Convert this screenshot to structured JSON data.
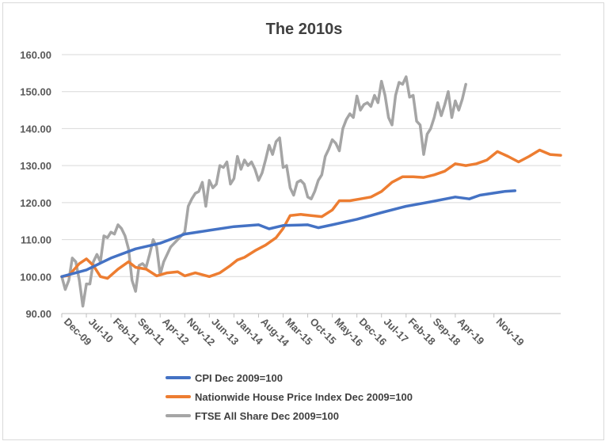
{
  "chart_data": {
    "type": "line",
    "title": "The 2010s",
    "xlabel": "",
    "ylabel": "",
    "ylim": [
      90,
      160
    ],
    "ytick_labels": [
      "90.00",
      "100.00",
      "110.00",
      "120.00",
      "130.00",
      "140.00",
      "150.00",
      "160.00"
    ],
    "ytick_values": [
      90,
      100,
      110,
      120,
      130,
      140,
      150,
      160
    ],
    "xtick_labels": [
      "Dec-09",
      "Jul-10",
      "Feb-11",
      "Sep-11",
      "Apr-12",
      "Nov-12",
      "Jun-13",
      "Jan-14",
      "Aug-14",
      "Mar-15",
      "Oct-15",
      "May-16",
      "Dec-16",
      "Jul-17",
      "Feb-18",
      "Sep-18",
      "Apr-19",
      "Nov-19"
    ],
    "grid": "horizontal",
    "legend_position": "bottom",
    "series": [
      {
        "name": "CPI  Dec 2009=100",
        "color": "#4472c4",
        "points": [
          [
            0,
            100
          ],
          [
            7,
            101.8
          ],
          [
            14,
            105
          ],
          [
            21,
            107.5
          ],
          [
            28,
            109
          ],
          [
            35,
            111.5
          ],
          [
            42,
            112.5
          ],
          [
            49,
            113.5
          ],
          [
            56,
            114
          ],
          [
            59,
            112.9
          ],
          [
            63,
            113.8
          ],
          [
            70,
            114
          ],
          [
            73,
            113.2
          ],
          [
            77,
            114
          ],
          [
            84,
            115.5
          ],
          [
            91,
            117.3
          ],
          [
            98,
            119
          ],
          [
            105,
            120.2
          ],
          [
            112,
            121.5
          ],
          [
            116,
            121
          ],
          [
            119,
            122
          ],
          [
            126,
            123
          ],
          [
            129,
            123.2
          ]
        ]
      },
      {
        "name": "Nationwide House Price Index  Dec 2009=100",
        "color": "#ed7d31",
        "points": [
          [
            0,
            100
          ],
          [
            2,
            100.3
          ],
          [
            5,
            103.5
          ],
          [
            7,
            104.8
          ],
          [
            9,
            103
          ],
          [
            11,
            100
          ],
          [
            13,
            99.5
          ],
          [
            16,
            102
          ],
          [
            19,
            104
          ],
          [
            21,
            102.5
          ],
          [
            24,
            102
          ],
          [
            27,
            100.2
          ],
          [
            30,
            101
          ],
          [
            33,
            101.3
          ],
          [
            35,
            100.2
          ],
          [
            38,
            101
          ],
          [
            42,
            100
          ],
          [
            45,
            101
          ],
          [
            48,
            103
          ],
          [
            50,
            104.5
          ],
          [
            52,
            105.2
          ],
          [
            55,
            107
          ],
          [
            58,
            108.5
          ],
          [
            61,
            110.5
          ],
          [
            63,
            113
          ],
          [
            65,
            116.5
          ],
          [
            68,
            116.8
          ],
          [
            71,
            116.5
          ],
          [
            74,
            116.2
          ],
          [
            77,
            118
          ],
          [
            79,
            120.5
          ],
          [
            82,
            120.5
          ],
          [
            85,
            121
          ],
          [
            88,
            121.5
          ],
          [
            91,
            123
          ],
          [
            94,
            125.5
          ],
          [
            97,
            127
          ],
          [
            100,
            127
          ],
          [
            103,
            126.8
          ],
          [
            106,
            127.5
          ],
          [
            109,
            128.5
          ],
          [
            112,
            130.5
          ],
          [
            115,
            130
          ],
          [
            118,
            130.5
          ],
          [
            121,
            131.5
          ],
          [
            124,
            133.8
          ],
          [
            127,
            132.5
          ],
          [
            130,
            131
          ],
          [
            133,
            132.5
          ],
          [
            136,
            134.2
          ],
          [
            139,
            133
          ],
          [
            142,
            132.8
          ]
        ]
      },
      {
        "name": "FTSE All Share Dec 2009=100",
        "color": "#a5a5a5",
        "points": [
          [
            0,
            100
          ],
          [
            1,
            96.5
          ],
          [
            2,
            99
          ],
          [
            3,
            105
          ],
          [
            4,
            104
          ],
          [
            5,
            99
          ],
          [
            6,
            92
          ],
          [
            7,
            98
          ],
          [
            8,
            98
          ],
          [
            9,
            104
          ],
          [
            10,
            106
          ],
          [
            11,
            104
          ],
          [
            12,
            111
          ],
          [
            13,
            110.5
          ],
          [
            14,
            112
          ],
          [
            15,
            111.5
          ],
          [
            16,
            114
          ],
          [
            17,
            113
          ],
          [
            18,
            111
          ],
          [
            19,
            107.5
          ],
          [
            20,
            99
          ],
          [
            21,
            96
          ],
          [
            22,
            103
          ],
          [
            23,
            103.5
          ],
          [
            24,
            102.5
          ],
          [
            25,
            106
          ],
          [
            26,
            110
          ],
          [
            27,
            108
          ],
          [
            28,
            100.5
          ],
          [
            29,
            104
          ],
          [
            30,
            106
          ],
          [
            31,
            108
          ],
          [
            32,
            109
          ],
          [
            33,
            110
          ],
          [
            34,
            111
          ],
          [
            35,
            112
          ],
          [
            36,
            119
          ],
          [
            37,
            121
          ],
          [
            38,
            122.5
          ],
          [
            39,
            123
          ],
          [
            40,
            125.5
          ],
          [
            41,
            119
          ],
          [
            42,
            126
          ],
          [
            43,
            124
          ],
          [
            44,
            125
          ],
          [
            45,
            130
          ],
          [
            46,
            129.5
          ],
          [
            47,
            131
          ],
          [
            48,
            125
          ],
          [
            49,
            126.5
          ],
          [
            50,
            132.5
          ],
          [
            51,
            129
          ],
          [
            52,
            131.5
          ],
          [
            53,
            130
          ],
          [
            54,
            131
          ],
          [
            55,
            129
          ],
          [
            56,
            126
          ],
          [
            57,
            128
          ],
          [
            58,
            131.5
          ],
          [
            59,
            135.5
          ],
          [
            60,
            133
          ],
          [
            61,
            136.5
          ],
          [
            62,
            137.5
          ],
          [
            63,
            129.5
          ],
          [
            64,
            130
          ],
          [
            65,
            124
          ],
          [
            66,
            122
          ],
          [
            67,
            125.5
          ],
          [
            68,
            126
          ],
          [
            69,
            125
          ],
          [
            70,
            121.5
          ],
          [
            71,
            121
          ],
          [
            72,
            123
          ],
          [
            73,
            126
          ],
          [
            74,
            127.5
          ],
          [
            75,
            132.5
          ],
          [
            76,
            134.5
          ],
          [
            77,
            137
          ],
          [
            78,
            136
          ],
          [
            79,
            134
          ],
          [
            80,
            140
          ],
          [
            81,
            142.5
          ],
          [
            82,
            144
          ],
          [
            83,
            143
          ],
          [
            84,
            148.8
          ],
          [
            85,
            145
          ],
          [
            86,
            146.5
          ],
          [
            87,
            147
          ],
          [
            88,
            146
          ],
          [
            89,
            149
          ],
          [
            90,
            147
          ],
          [
            91,
            152.8
          ],
          [
            92,
            149
          ],
          [
            93,
            143
          ],
          [
            94,
            141
          ],
          [
            95,
            149
          ],
          [
            96,
            152.5
          ],
          [
            97,
            152
          ],
          [
            98,
            154
          ],
          [
            99,
            148.5
          ],
          [
            100,
            149
          ],
          [
            101,
            142
          ],
          [
            102,
            141
          ],
          [
            103,
            133
          ],
          [
            104,
            138.5
          ],
          [
            105,
            140
          ],
          [
            106,
            143
          ],
          [
            107,
            147
          ],
          [
            108,
            143.5
          ],
          [
            109,
            146.5
          ],
          [
            110,
            150
          ],
          [
            111,
            143
          ],
          [
            112,
            147.5
          ],
          [
            113,
            145
          ],
          [
            114,
            148
          ],
          [
            115,
            152
          ]
        ]
      }
    ]
  }
}
